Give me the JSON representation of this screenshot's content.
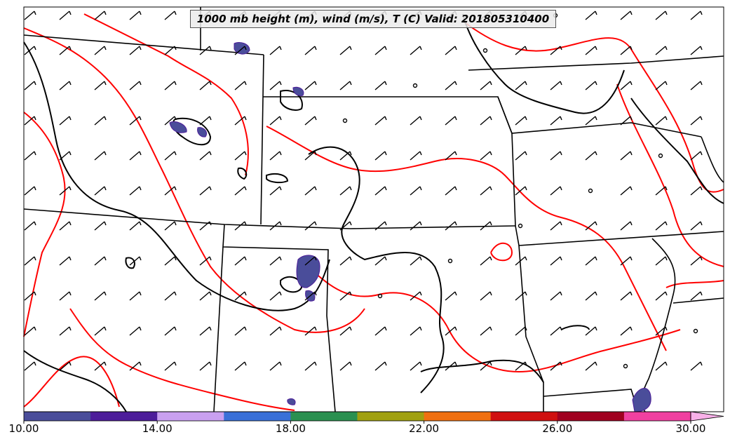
{
  "map": {
    "title": "1000 mb height (m), wind (m/s), T (C) Valid: 201805310400",
    "colors": {
      "state_border": "#000000",
      "height_contour": "#000000",
      "temperature_contour": "#ff0000",
      "wind_barb": "#000000",
      "background": "#ffffff"
    }
  },
  "colorbar": {
    "tick_labels": [
      "10.00",
      "14.00",
      "18.00",
      "22.00",
      "26.00",
      "30.00"
    ],
    "segment_colors": [
      "#4a4d9a",
      "#4d1d9a",
      "#c9a0f0",
      "#3a70d8",
      "#2a9050",
      "#a0a010",
      "#f07010",
      "#d01010",
      "#a00020",
      "#f040a0"
    ],
    "extend_color": "#f8b0e8",
    "min": 10,
    "max": 30,
    "step": 2
  }
}
